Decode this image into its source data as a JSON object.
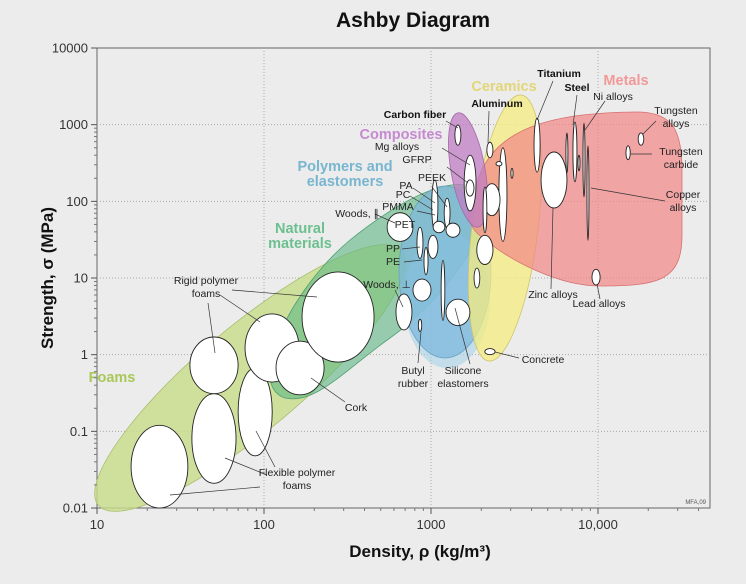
{
  "chart_data": {
    "type": "scatter",
    "subtype": "bubble-envelope (Ashby diagram)",
    "title": "Ashby Diagram",
    "xlabel": "Density, ρ (kg/m³)",
    "ylabel": "Strength, σ (MPa)",
    "x_scale": "log",
    "y_scale": "log",
    "xlim": [
      10,
      48000
    ],
    "ylim": [
      0.01,
      10000
    ],
    "x_ticks": [
      "10",
      "100",
      "1000",
      "10,000"
    ],
    "y_ticks": [
      "10000",
      "1000",
      "100",
      "10",
      "1",
      "0.1",
      "0.01"
    ],
    "grid": true,
    "credit": "MFA,09",
    "region_labels": [
      {
        "text": [
          "Foams"
        ],
        "color": "#a9c85a"
      },
      {
        "text": [
          "Natural",
          "materials"
        ],
        "color": "#6cc090"
      },
      {
        "text": [
          "Polymers and",
          "elastomers"
        ],
        "color": "#78b6d0"
      },
      {
        "text": [
          "Composites"
        ],
        "color": "#c58ad0"
      },
      {
        "text": [
          "Ceramics"
        ],
        "color": "#e2d678"
      },
      {
        "text": [
          "Metals"
        ],
        "color": "#f29898"
      }
    ],
    "region_colors": {
      "foams": "#c8dd8a",
      "natural": "#5db884",
      "polymers": "#7db8dc",
      "composites": "#c07ec4",
      "ceramics": "#f4ec80",
      "metals": "#f28686"
    },
    "material_labels": [
      {
        "text": [
          "Titanium"
        ],
        "bold": true
      },
      {
        "text": [
          "Steel"
        ],
        "bold": true
      },
      {
        "text": [
          "Aluminum"
        ],
        "bold": true
      },
      {
        "text": [
          "Carbon fiber"
        ],
        "bold": true
      },
      {
        "text": [
          "Ni alloys"
        ]
      },
      {
        "text": [
          "Tungsten",
          "alloys"
        ]
      },
      {
        "text": [
          "Tungsten",
          "carbide"
        ]
      },
      {
        "text": [
          "Copper",
          "alloys"
        ]
      },
      {
        "text": [
          "Zinc alloys"
        ]
      },
      {
        "text": [
          "Lead alloys"
        ]
      },
      {
        "text": [
          "Concrete"
        ]
      },
      {
        "text": [
          "Silicone",
          "elastomers"
        ]
      },
      {
        "text": [
          "Butyl",
          "rubber"
        ]
      },
      {
        "text": [
          "Cork"
        ]
      },
      {
        "text": [
          "Flexible polymer",
          "foams"
        ]
      },
      {
        "text": [
          "Rigid polymer",
          "foams"
        ]
      },
      {
        "text": [
          "Mg alloys"
        ]
      },
      {
        "text": [
          "GFRP"
        ]
      },
      {
        "text": [
          "PEEK"
        ]
      },
      {
        "text": [
          "PA"
        ]
      },
      {
        "text": [
          "PC"
        ]
      },
      {
        "text": [
          "PMMA"
        ]
      },
      {
        "text": [
          "Woods, ∥"
        ]
      },
      {
        "text": [
          "PET"
        ]
      },
      {
        "text": [
          "PP"
        ]
      },
      {
        "text": [
          "PE"
        ]
      },
      {
        "text": [
          "Woods, ⊥"
        ]
      }
    ],
    "bubbles": [
      {
        "density": [
          16,
          35
        ],
        "strength": [
          0.01,
          0.12
        ]
      },
      {
        "density": [
          37,
          68
        ],
        "strength": [
          0.021,
          0.31
        ]
      },
      {
        "density": [
          70,
          112
        ],
        "strength": [
          0.048,
          0.67
        ]
      },
      {
        "density": [
          36,
          70
        ],
        "strength": [
          0.31,
          1.7
        ]
      },
      {
        "density": [
          77,
          162
        ],
        "strength": [
          0.44,
          3.4
        ]
      },
      {
        "density": [
          118,
          229
        ],
        "strength": [
          0.3,
          1.5
        ]
      },
      {
        "density": [
          169,
          456
        ],
        "strength": [
          0.8,
          12
        ]
      },
      {
        "density": [
          546,
          780
        ],
        "strength": [
          30,
          71
        ]
      },
      {
        "density": [
          617,
          769
        ],
        "strength": [
          2.1,
          6.2
        ]
      },
      {
        "density": [
          780,
          1000
        ],
        "strength": [
          5,
          9.7
        ]
      },
      {
        "density": [
          1230,
          1710
        ],
        "strength": [
          2.4,
          5.3
        ]
      },
      {
        "density": [
          1150,
          1210
        ],
        "strength": [
          2.8,
          17
        ]
      },
      {
        "density": [
          840,
          880
        ],
        "strength": [
          2.0,
          2.9
        ]
      },
      {
        "density": [
          1010,
          1100
        ],
        "strength": [
          42,
          190
        ]
      },
      {
        "density": [
          1200,
          1300
        ],
        "strength": [
          45,
          110
        ]
      },
      {
        "density": [
          1230,
          1490
        ],
        "strength": [
          34,
          52
        ]
      },
      {
        "density": [
          1030,
          1210
        ],
        "strength": [
          39,
          55
        ]
      },
      {
        "density": [
          960,
          1100
        ],
        "strength": [
          18,
          36
        ]
      },
      {
        "density": [
          824,
          895
        ],
        "strength": [
          18,
          46
        ]
      },
      {
        "density": [
          908,
          960
        ],
        "strength": [
          11,
          25
        ]
      },
      {
        "density": [
          1390,
          1510
        ],
        "strength": [
          540,
          990
        ]
      },
      {
        "density": [
          1580,
          1860
        ],
        "strength": [
          75,
          400
        ]
      },
      {
        "density": [
          1620,
          1810
        ],
        "strength": [
          117,
          190
        ]
      },
      {
        "density": [
          2160,
          2350
        ],
        "strength": [
          370,
          590
        ]
      },
      {
        "density": [
          2550,
          2850
        ],
        "strength": [
          30,
          500
        ]
      },
      {
        "density": [
          2450,
          2660
        ],
        "strength": [
          290,
          330
        ]
      },
      {
        "density": [
          2070,
          2590
        ],
        "strength": [
          65,
          170
        ]
      },
      {
        "density": [
          2050,
          2160
        ],
        "strength": [
          39,
          154
        ]
      },
      {
        "density": [
          3010,
          3100
        ],
        "strength": [
          200,
          270
        ]
      },
      {
        "density": [
          1880,
          2350
        ],
        "strength": [
          15,
          36
        ]
      },
      {
        "density": [
          1810,
          1960
        ],
        "strength": [
          7.4,
          13.5
        ]
      },
      {
        "density": [
          2100,
          2420
        ],
        "strength": [
          1.0,
          1.2
        ]
      },
      {
        "density": [
          4140,
          4500
        ],
        "strength": [
          240,
          1220
        ]
      },
      {
        "density": [
          4560,
          6520
        ],
        "strength": [
          82,
          440
        ]
      },
      {
        "density": [
          7080,
          7480
        ],
        "strength": [
          180,
          1080
        ]
      },
      {
        "density": [
          6430,
          6600
        ],
        "strength": [
          234,
          780
        ]
      },
      {
        "density": [
          7590,
          7800
        ],
        "strength": [
          250,
          400
        ]
      },
      {
        "density": [
          8130,
          8360
        ],
        "strength": [
          114,
          1050
        ]
      },
      {
        "density": [
          8590,
          8830
        ],
        "strength": [
          31,
          530
        ]
      },
      {
        "density": [
          9200,
          10300
        ],
        "strength": [
          8.1,
          13
        ]
      },
      {
        "density": [
          17400,
          18800
        ],
        "strength": [
          540,
          780
        ]
      },
      {
        "density": [
          14700,
          15600
        ],
        "strength": [
          350,
          530
        ]
      }
    ]
  }
}
